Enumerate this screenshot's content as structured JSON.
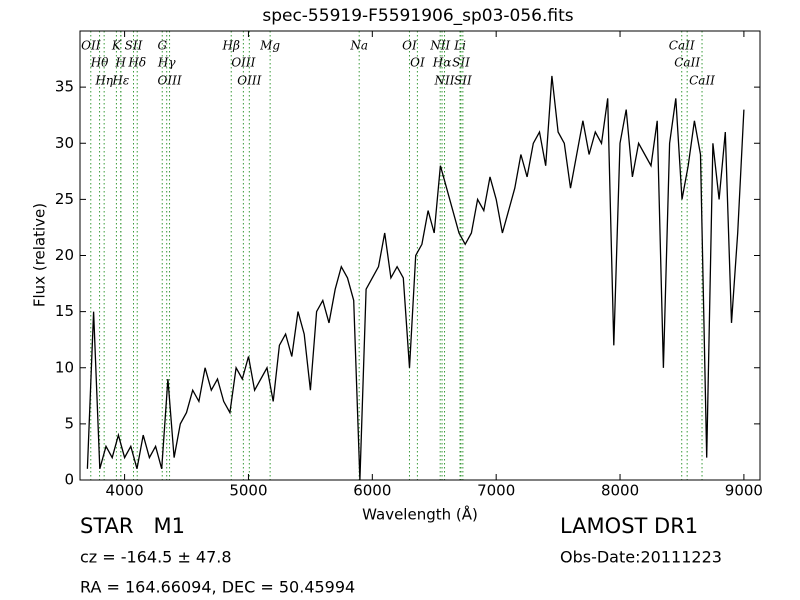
{
  "chart_data": {
    "type": "line",
    "title": "spec-55919-F5591906_sp03-056.fits",
    "x_label": "Wavelength (Å)",
    "y_label": "Flux (relative)",
    "annotations": {
      "class": "STAR   M1",
      "survey": "LAMOST DR1",
      "redshift": "cz = -164.5 ± 47.8",
      "date": "Obs-Date:20111223",
      "coords": "RA = 164.66094, DEC = 50.45994"
    },
    "xlim": [
      3640,
      9130
    ],
    "ylim": [
      0,
      40
    ],
    "xticks": [
      4000,
      5000,
      6000,
      7000,
      8000,
      9000
    ],
    "yticks": [
      0,
      5,
      10,
      15,
      20,
      25,
      30,
      35
    ],
    "color": "#000000",
    "marker_color": "#3a9a3a",
    "x": [
      3700,
      3750,
      3800,
      3850,
      3900,
      3950,
      4000,
      4050,
      4100,
      4150,
      4200,
      4250,
      4300,
      4350,
      4400,
      4450,
      4500,
      4550,
      4600,
      4650,
      4700,
      4750,
      4800,
      4850,
      4900,
      4950,
      5000,
      5050,
      5100,
      5150,
      5200,
      5250,
      5300,
      5350,
      5400,
      5450,
      5500,
      5550,
      5600,
      5650,
      5700,
      5750,
      5800,
      5850,
      5900,
      5950,
      6000,
      6050,
      6100,
      6150,
      6200,
      6250,
      6300,
      6350,
      6400,
      6450,
      6500,
      6550,
      6600,
      6650,
      6700,
      6750,
      6800,
      6850,
      6900,
      6950,
      7000,
      7050,
      7100,
      7150,
      7200,
      7250,
      7300,
      7350,
      7400,
      7450,
      7500,
      7550,
      7600,
      7650,
      7700,
      7750,
      7800,
      7850,
      7900,
      7950,
      8000,
      8050,
      8100,
      8150,
      8200,
      8250,
      8300,
      8350,
      8400,
      8450,
      8500,
      8550,
      8600,
      8650,
      8700,
      8750,
      8800,
      8850,
      8900,
      8950,
      9000
    ],
    "values": [
      1,
      15,
      1,
      3,
      2,
      4,
      2,
      3,
      1,
      4,
      2,
      3,
      1,
      9,
      2,
      5,
      6,
      8,
      7,
      10,
      8,
      9,
      7,
      6,
      10,
      9,
      11,
      8,
      9,
      10,
      7,
      12,
      13,
      11,
      15,
      13,
      8,
      15,
      16,
      14,
      17,
      19,
      18,
      16,
      0,
      17,
      18,
      19,
      22,
      18,
      19,
      18,
      10,
      20,
      21,
      24,
      22,
      28,
      26,
      24,
      22,
      21,
      22,
      25,
      24,
      27,
      25,
      22,
      24,
      26,
      29,
      27,
      30,
      31,
      28,
      36,
      31,
      30,
      26,
      29,
      32,
      29,
      31,
      30,
      34,
      12,
      30,
      33,
      27,
      30,
      29,
      28,
      32,
      10,
      30,
      34,
      25,
      28,
      32,
      29,
      2,
      30,
      25,
      31,
      14,
      22,
      33
    ],
    "line_markers": [
      {
        "label": "OII",
        "wavelength": 3727
      },
      {
        "label": "Hθ",
        "wavelength": 3798
      },
      {
        "label": "Hη",
        "wavelength": 3835
      },
      {
        "label": "K",
        "wavelength": 3934
      },
      {
        "label": "Hε",
        "wavelength": 3970
      },
      {
        "label": "H",
        "wavelength": 3969
      },
      {
        "label": "SII",
        "wavelength": 4072
      },
      {
        "label": "Hδ",
        "wavelength": 4102
      },
      {
        "label": "G",
        "wavelength": 4304
      },
      {
        "label": "Hγ",
        "wavelength": 4340
      },
      {
        "label": "OIII",
        "wavelength": 4363
      },
      {
        "label": "Hβ",
        "wavelength": 4861
      },
      {
        "label": "OIII",
        "wavelength": 4959
      },
      {
        "label": "OIII",
        "wavelength": 5007
      },
      {
        "label": "Mg",
        "wavelength": 5175
      },
      {
        "label": "Na",
        "wavelength": 5894
      },
      {
        "label": "OI",
        "wavelength": 6300
      },
      {
        "label": "OI",
        "wavelength": 6364
      },
      {
        "label": "NII",
        "wavelength": 6548
      },
      {
        "label": "Hα",
        "wavelength": 6563
      },
      {
        "label": "NII",
        "wavelength": 6583
      },
      {
        "label": "Li",
        "wavelength": 6708
      },
      {
        "label": "SII",
        "wavelength": 6716
      },
      {
        "label": "SII",
        "wavelength": 6731
      },
      {
        "label": "CaII",
        "wavelength": 8498
      },
      {
        "label": "CaII",
        "wavelength": 8542
      },
      {
        "label": "CaII",
        "wavelength": 8662
      }
    ]
  }
}
